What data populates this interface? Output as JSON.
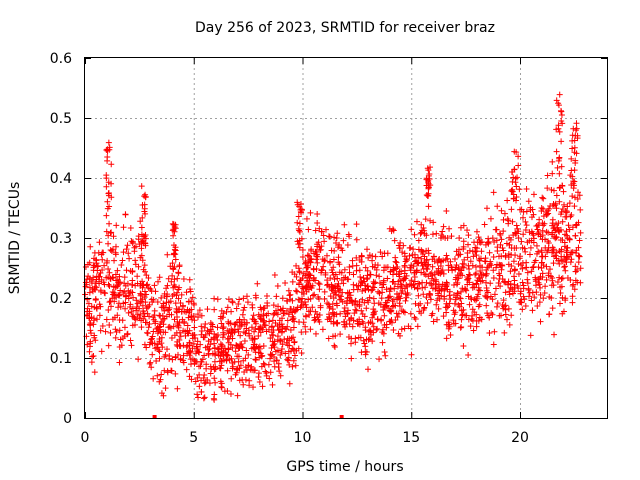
{
  "chart_data": {
    "type": "scatter",
    "title": "Day 256 of 2023, SRMTID for receiver braz",
    "xlabel": "GPS time / hours",
    "ylabel": "SRMTID / TECUs",
    "xlim": [
      0,
      24
    ],
    "ylim": [
      0,
      0.6
    ],
    "x_ticks": [
      0,
      5,
      10,
      15,
      20
    ],
    "x_tick_labels": [
      "0",
      "5",
      "10",
      "15",
      "20"
    ],
    "y_ticks": [
      0,
      0.1,
      0.2,
      0.3,
      0.4,
      0.5,
      0.6
    ],
    "y_tick_labels": [
      "0",
      "0.1",
      "0.2",
      "0.3",
      "0.4",
      "0.5",
      "0.6"
    ],
    "grid": true,
    "marker": "plus",
    "color": "#ff0000",
    "x_range_data": [
      0,
      22.8
    ],
    "trend": {
      "x": [
        0,
        0.5,
        1.0,
        1.5,
        2.0,
        2.5,
        3.0,
        3.5,
        4.0,
        4.5,
        5.0,
        5.5,
        6.0,
        6.5,
        7.0,
        7.5,
        8.0,
        8.5,
        9.0,
        9.5,
        10.0,
        10.5,
        11.0,
        11.5,
        12.0,
        12.5,
        13.0,
        13.5,
        14.0,
        14.5,
        15.0,
        15.5,
        16.0,
        16.5,
        17.0,
        17.5,
        18.0,
        18.5,
        19.0,
        19.5,
        20.0,
        20.5,
        21.0,
        21.5,
        22.0,
        22.5,
        22.8
      ],
      "y": [
        0.19,
        0.21,
        0.23,
        0.22,
        0.2,
        0.24,
        0.16,
        0.14,
        0.17,
        0.16,
        0.12,
        0.11,
        0.11,
        0.12,
        0.13,
        0.13,
        0.13,
        0.13,
        0.14,
        0.15,
        0.22,
        0.24,
        0.23,
        0.22,
        0.21,
        0.19,
        0.19,
        0.2,
        0.21,
        0.22,
        0.23,
        0.25,
        0.24,
        0.22,
        0.22,
        0.23,
        0.24,
        0.24,
        0.25,
        0.26,
        0.28,
        0.27,
        0.27,
        0.28,
        0.29,
        0.3,
        0.31
      ]
    },
    "spread": {
      "x": [
        0,
        1,
        2,
        3,
        4,
        5,
        6,
        7,
        8,
        9,
        10,
        11,
        12,
        13,
        14,
        15,
        16,
        17,
        18,
        19,
        20,
        21,
        22,
        22.8
      ],
      "y": [
        0.06,
        0.07,
        0.07,
        0.06,
        0.06,
        0.05,
        0.05,
        0.05,
        0.05,
        0.05,
        0.06,
        0.06,
        0.06,
        0.06,
        0.06,
        0.06,
        0.06,
        0.06,
        0.06,
        0.07,
        0.07,
        0.08,
        0.08,
        0.08
      ]
    },
    "bursts": [
      {
        "x_center": 1.1,
        "width": 0.25,
        "y_min": 0.33,
        "y_max": 0.46
      },
      {
        "x_center": 2.7,
        "width": 0.2,
        "y_min": 0.28,
        "y_max": 0.39
      },
      {
        "x_center": 4.1,
        "width": 0.15,
        "y_min": 0.24,
        "y_max": 0.33
      },
      {
        "x_center": 9.9,
        "width": 0.3,
        "y_min": 0.28,
        "y_max": 0.36
      },
      {
        "x_center": 15.8,
        "width": 0.2,
        "y_min": 0.33,
        "y_max": 0.42
      },
      {
        "x_center": 19.8,
        "width": 0.4,
        "y_min": 0.36,
        "y_max": 0.45
      },
      {
        "x_center": 21.8,
        "width": 0.3,
        "y_min": 0.38,
        "y_max": 0.54
      },
      {
        "x_center": 22.5,
        "width": 0.3,
        "y_min": 0.38,
        "y_max": 0.5
      }
    ],
    "point_count": 2400,
    "gap_markers_x": [
      3.2,
      11.8
    ]
  }
}
